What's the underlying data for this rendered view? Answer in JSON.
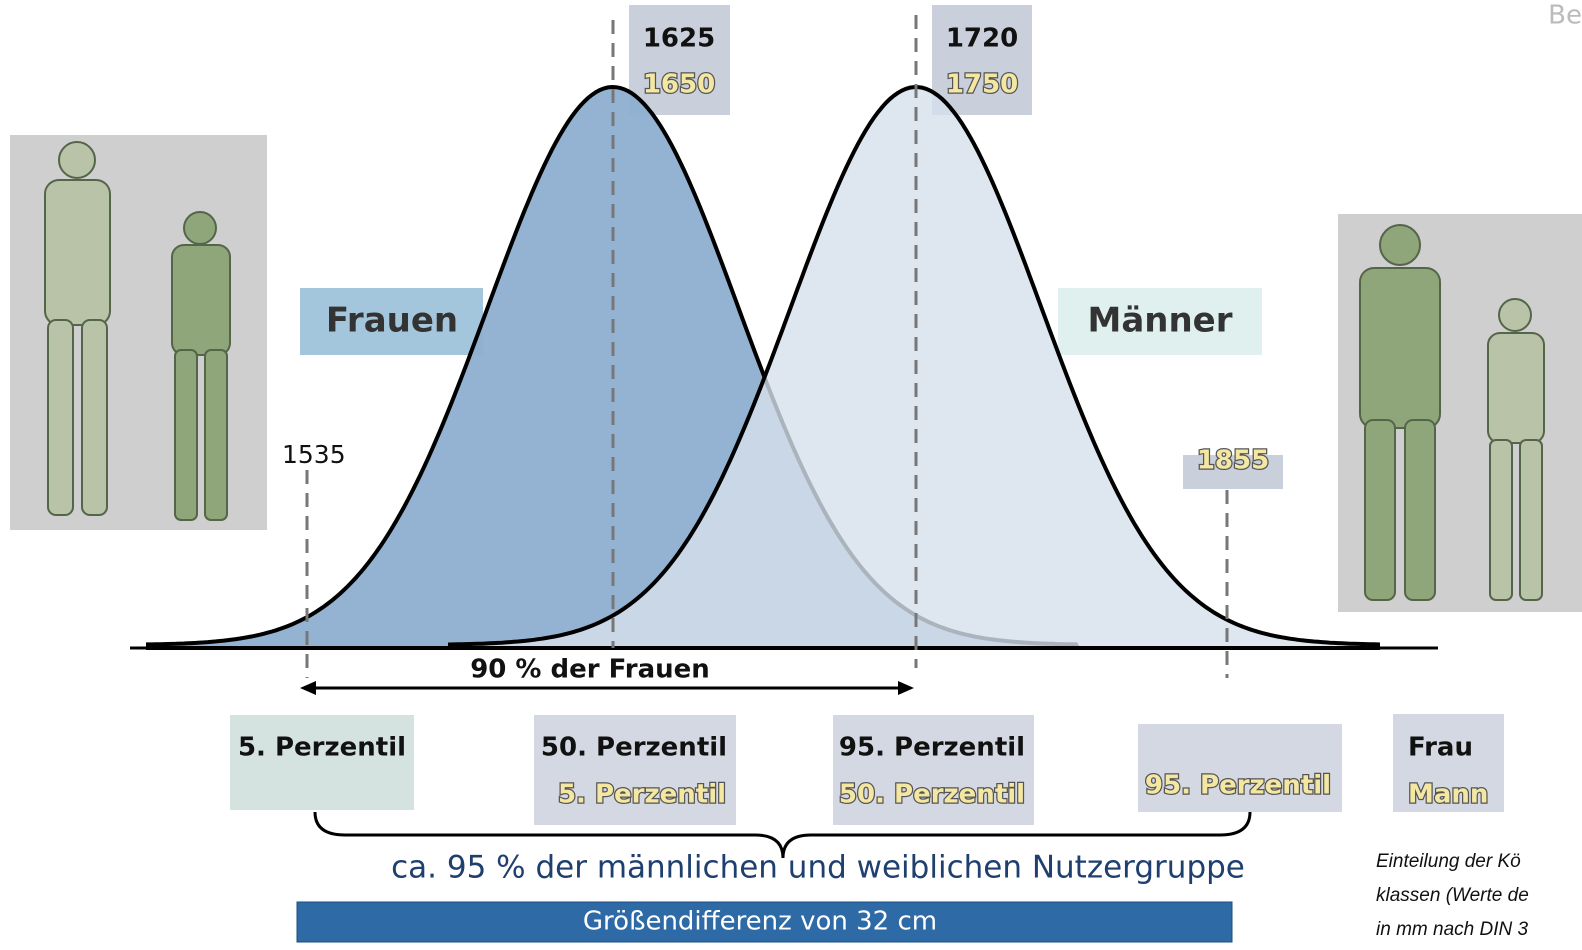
{
  "header": {
    "corner": "Be"
  },
  "peaks": {
    "women": {
      "frau": "1625",
      "mann": "1650"
    },
    "men": {
      "frau": "1720",
      "mann": "1750"
    }
  },
  "markers": {
    "left": "1535",
    "right": "1855"
  },
  "groups": {
    "women": "Frauen",
    "men": "Männer"
  },
  "range_label": "90 % der Frauen",
  "percentiles": [
    {
      "frau": "5. Perzentil"
    },
    {
      "frau": "50. Perzentil",
      "mann": "5. Perzentil"
    },
    {
      "frau": "95. Perzentil",
      "mann": "50. Perzentil"
    },
    {
      "mann": "95. Perzentil"
    }
  ],
  "legend": {
    "frau": "Frau",
    "mann": "Mann"
  },
  "coverage": "ca. 95 % der männlichen und weiblichen Nutzergruppe",
  "difference": "Größendifferenz von 32 cm",
  "caption": [
    "Einteilung der Kö",
    "klassen (Werte de",
    "in mm nach DIN 3"
  ]
}
